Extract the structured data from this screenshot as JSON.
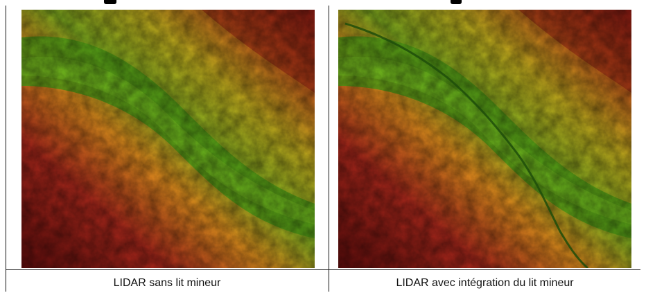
{
  "panels": [
    {
      "caption": "LIDAR sans lit mineur",
      "channel": false
    },
    {
      "caption": "LIDAR avec intégration du lit mineur",
      "channel": true
    }
  ],
  "colors": {
    "low": "#3f8f12",
    "mid": "#c9b21a",
    "high": "#8a1010",
    "grid": "#111111"
  }
}
